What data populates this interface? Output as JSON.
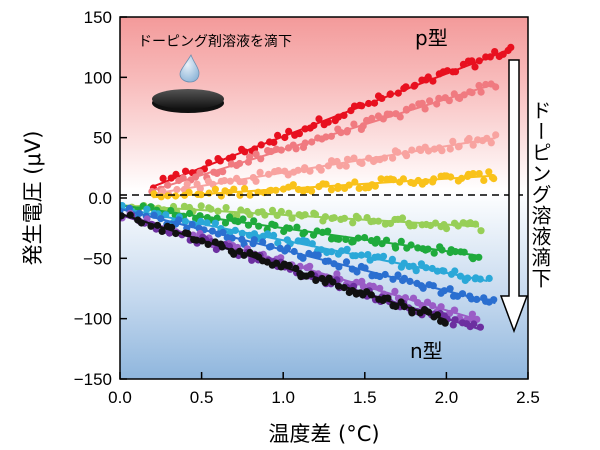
{
  "chart_data": {
    "type": "scatter",
    "title": "",
    "xlabel": "温度差 (°C)",
    "ylabel": "発生電圧 (μV)",
    "xlim": [
      0.0,
      2.5
    ],
    "ylim": [
      -150,
      150
    ],
    "x_ticks": [
      0.0,
      0.5,
      1.0,
      1.5,
      2.0,
      2.5
    ],
    "y_ticks": [
      150,
      100,
      50,
      0.0,
      -50,
      -100,
      -150
    ],
    "x_tick_labels": [
      "0.0",
      "0.5",
      "1.0",
      "1.5",
      "2.0",
      "2.5"
    ],
    "y_tick_labels": [
      "150",
      "100",
      "50",
      "0.0",
      "−50",
      "−100",
      "−150"
    ],
    "zero_line": "dashed",
    "background": {
      "top_color": "#f39a9a",
      "middle_color": "#ffffff",
      "bottom_color": "#8fb6dd"
    },
    "annotations": {
      "dropping_label": "ドーピング剤溶液を滴下",
      "p_type_label": "p型",
      "n_type_label": "n型",
      "arrow_label": "ドーピング溶液滴下"
    },
    "series": [
      {
        "color": "#e8101f",
        "x_range": [
          0.2,
          2.4
        ],
        "slope": 52,
        "intercept": -1
      },
      {
        "color": "#f07a80",
        "x_range": [
          0.2,
          2.3
        ],
        "slope": 42,
        "intercept": -2
      },
      {
        "color": "#f8a3a0",
        "x_range": [
          0.2,
          2.3
        ],
        "slope": 22,
        "intercept": -1
      },
      {
        "color": "#f9c21a",
        "x_range": [
          0.2,
          2.3
        ],
        "slope": 8.5,
        "intercept": -1
      },
      {
        "color": "#97cf57",
        "x_range": [
          0.0,
          2.2
        ],
        "slope": -8,
        "intercept": -6
      },
      {
        "color": "#1faa3c",
        "x_range": [
          0.0,
          2.2
        ],
        "slope": -19,
        "intercept": -6
      },
      {
        "color": "#2ba8d8",
        "x_range": [
          0.0,
          2.25
        ],
        "slope": -27,
        "intercept": -8
      },
      {
        "color": "#2b6fd0",
        "x_range": [
          0.0,
          2.3
        ],
        "slope": -34,
        "intercept": -9
      },
      {
        "color": "#9a5cc6",
        "x_range": [
          0.0,
          2.2
        ],
        "slope": -40,
        "intercept": -13
      },
      {
        "color": "#6c2fa0",
        "x_range": [
          0.0,
          2.2
        ],
        "slope": -43,
        "intercept": -14
      },
      {
        "color": "#111111",
        "x_range": [
          0.0,
          2.0
        ],
        "slope": -44,
        "intercept": -13
      }
    ]
  }
}
